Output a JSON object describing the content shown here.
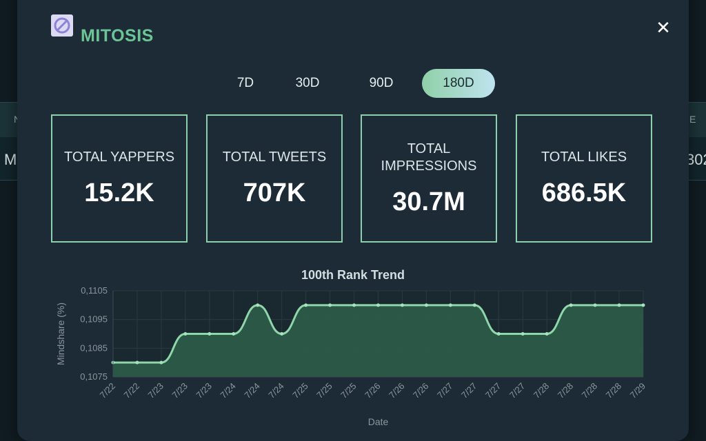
{
  "background": {
    "header_left": "N",
    "header_right": "E",
    "row_left": "M",
    "row_right": "302"
  },
  "modal": {
    "title": "MITOSIS",
    "close_icon": "close-icon",
    "logo_icon": "mitosis-logo-icon"
  },
  "tabs": [
    {
      "label": "7D",
      "active": false
    },
    {
      "label": "30D",
      "active": false
    },
    {
      "label": "90D",
      "active": false
    },
    {
      "label": "180D",
      "active": true
    }
  ],
  "stats": [
    {
      "label": "TOTAL YAPPERS",
      "value": "15.2K"
    },
    {
      "label": "TOTAL TWEETS",
      "value": "707K"
    },
    {
      "label": "TOTAL IMPRESSIONS",
      "value": "30.7M"
    },
    {
      "label": "TOTAL LIKES",
      "value": "686.5K"
    }
  ],
  "colors": {
    "accent": "#6cc596",
    "line": "#8fd6aa",
    "area": "#2b5a48",
    "card_border": "#8cd0ae"
  },
  "chart_data": {
    "type": "area",
    "title": "100th Rank Trend",
    "xlabel": "Date",
    "ylabel": "Mindshare (%)",
    "ylim": [
      0.1075,
      0.1105
    ],
    "yticks": [
      "0,1105",
      "0,1095",
      "0,1085",
      "0,1075"
    ],
    "x": [
      "7/22",
      "7/22",
      "7/23",
      "7/23",
      "7/23",
      "7/24",
      "7/24",
      "7/24",
      "7/25",
      "7/25",
      "7/25",
      "7/26",
      "7/26",
      "7/26",
      "7/27",
      "7/27",
      "7/27",
      "7/27",
      "7/28",
      "7/28",
      "7/28",
      "7/28",
      "7/29"
    ],
    "values": [
      0.108,
      0.108,
      0.108,
      0.109,
      0.109,
      0.109,
      0.11,
      0.109,
      0.11,
      0.11,
      0.11,
      0.11,
      0.11,
      0.11,
      0.11,
      0.11,
      0.109,
      0.109,
      0.109,
      0.11,
      0.11,
      0.11,
      0.11
    ],
    "grid": true,
    "legend": "none"
  }
}
